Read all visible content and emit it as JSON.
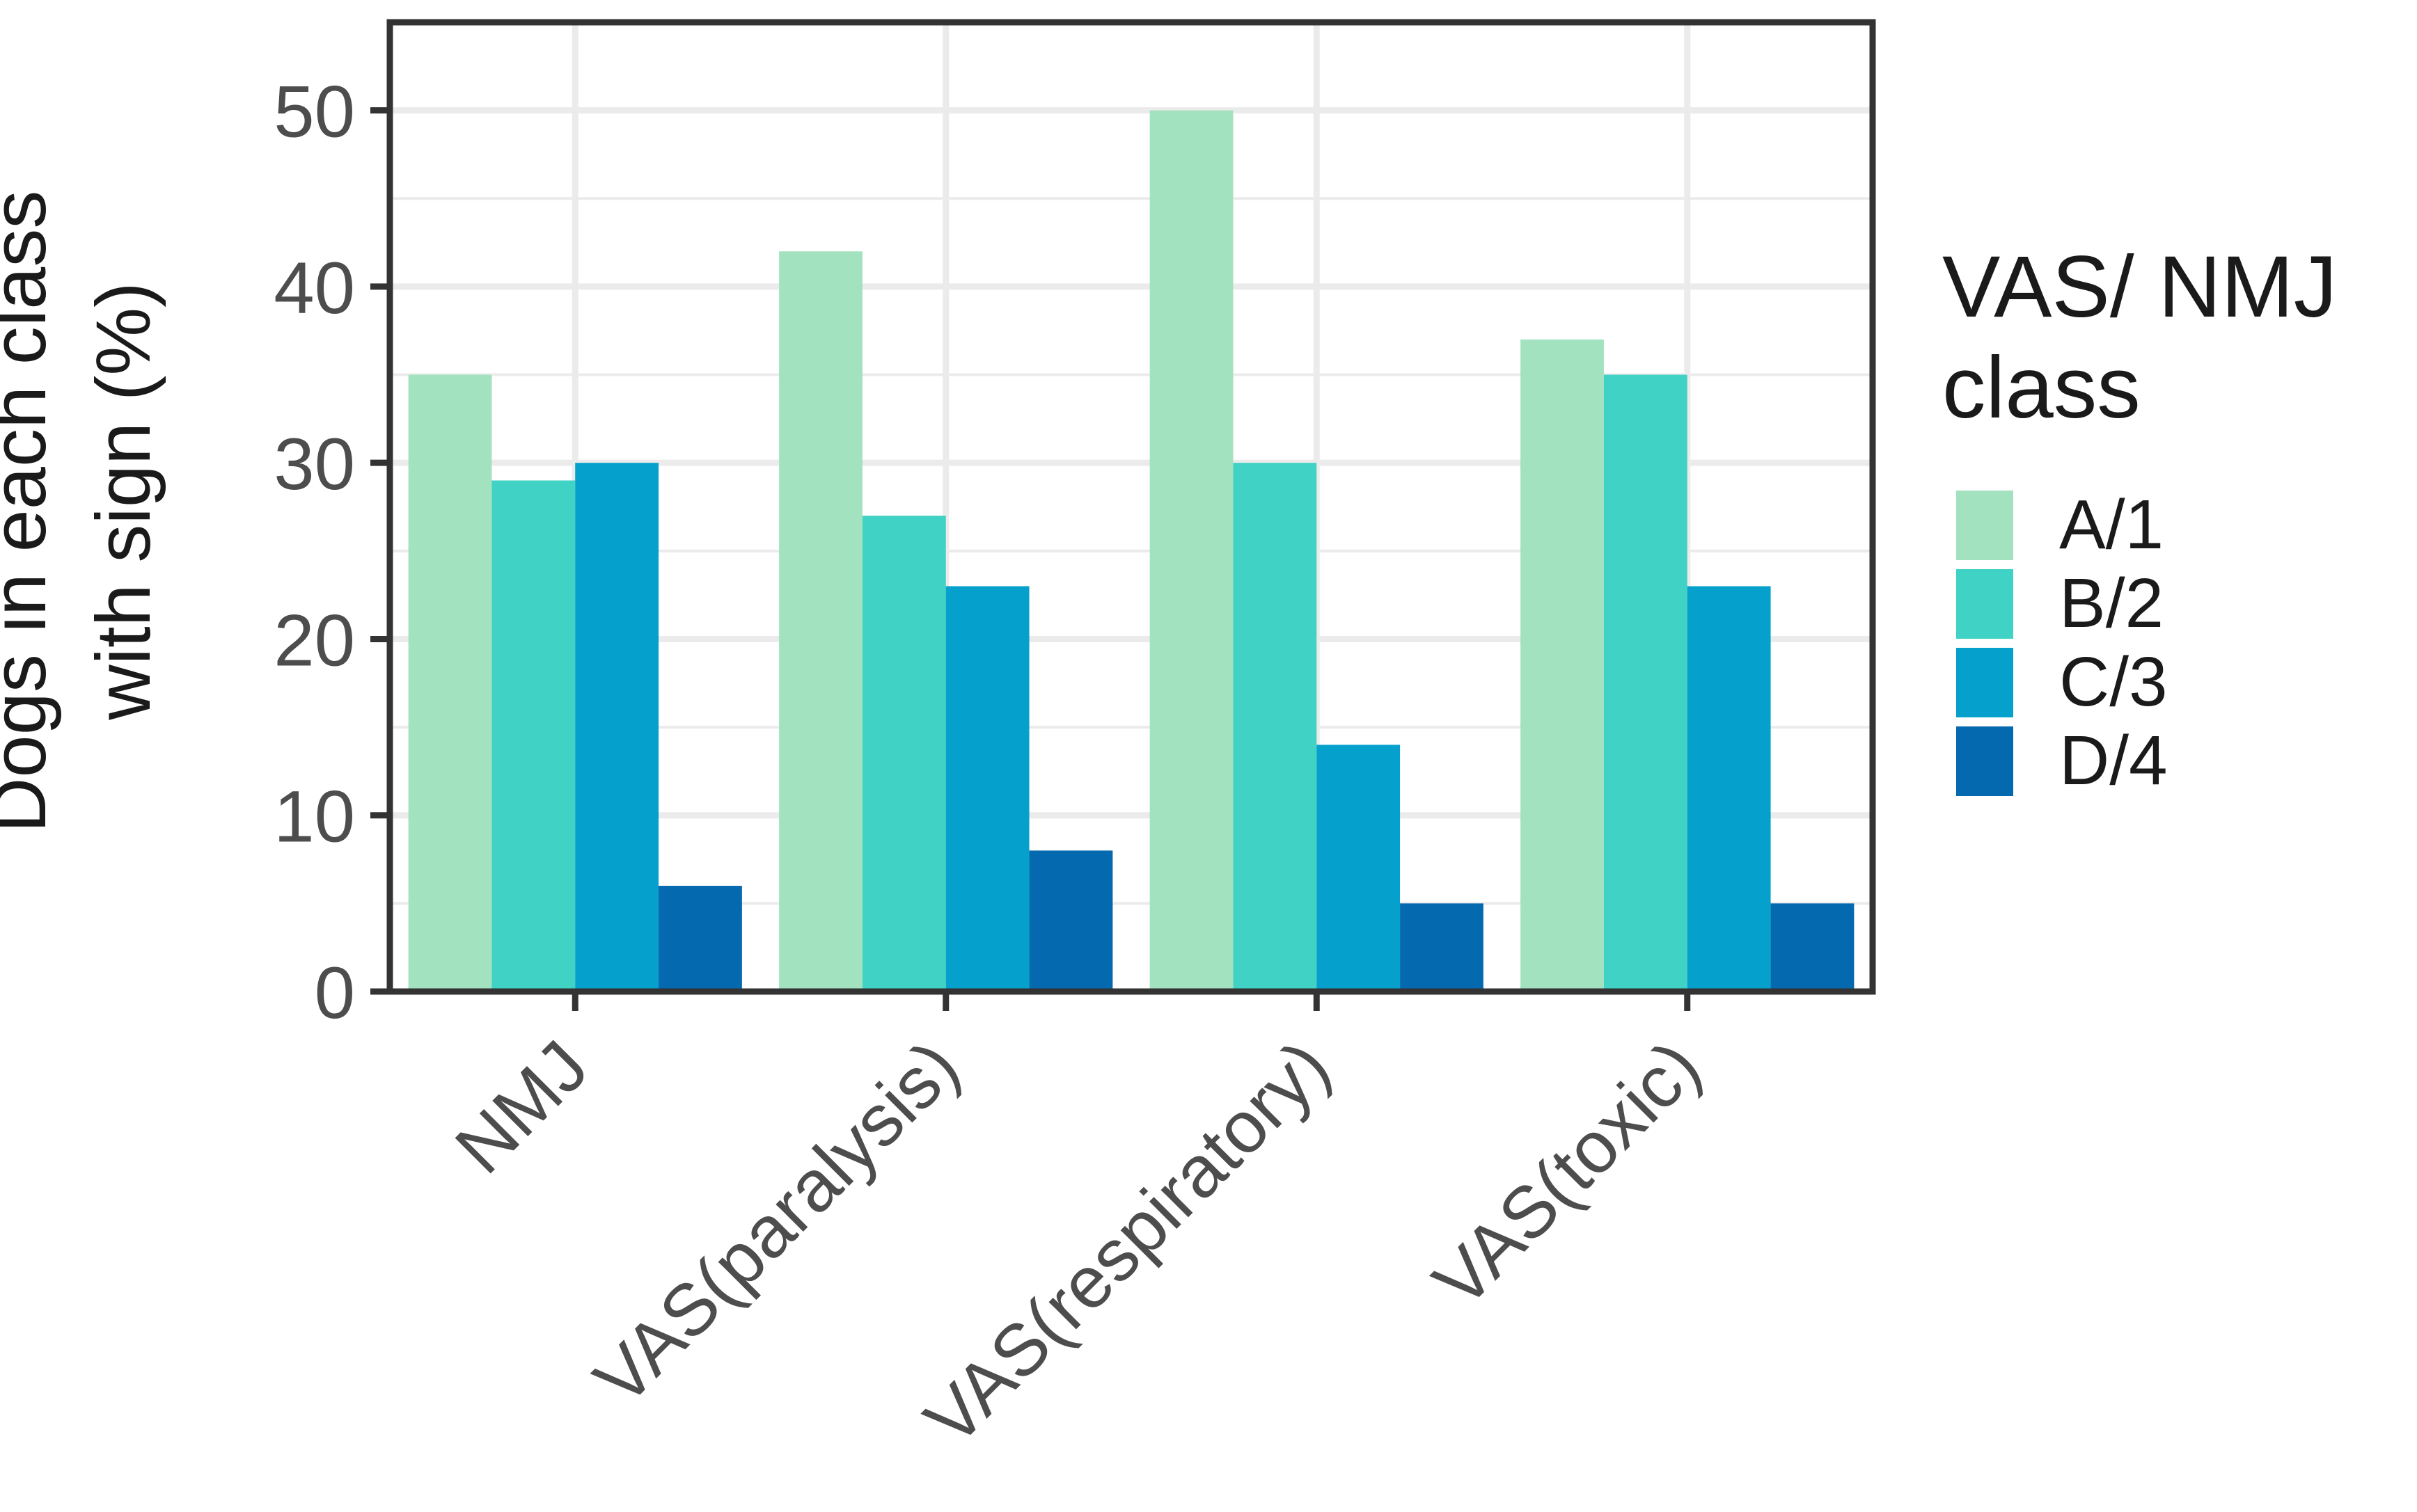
{
  "chart_data": {
    "type": "bar",
    "categories": [
      "NMJ",
      "VAS(paralysis)",
      "VAS(respiratory)",
      "VAS(toxic)"
    ],
    "series": [
      {
        "name": "A/1",
        "values": [
          35,
          42,
          50,
          37
        ]
      },
      {
        "name": "B/2",
        "values": [
          29,
          27,
          30,
          35
        ]
      },
      {
        "name": "C/3",
        "values": [
          30,
          23,
          14,
          23
        ]
      },
      {
        "name": "D/4",
        "values": [
          6,
          8,
          5,
          5
        ]
      }
    ],
    "title": "",
    "xlabel": "",
    "ylabel_lines": [
      "Dogs in each class",
      "with sign (%)"
    ],
    "ylim": [
      0,
      55
    ],
    "yticks": [
      0,
      10,
      20,
      30,
      40,
      50
    ],
    "grid": true,
    "legend": {
      "title_lines": [
        "VAS/ NMJ",
        "class"
      ],
      "placement": "right"
    },
    "colors": [
      "#a3e2be",
      "#40d2c4",
      "#05a0cc",
      "#0569b0"
    ]
  }
}
